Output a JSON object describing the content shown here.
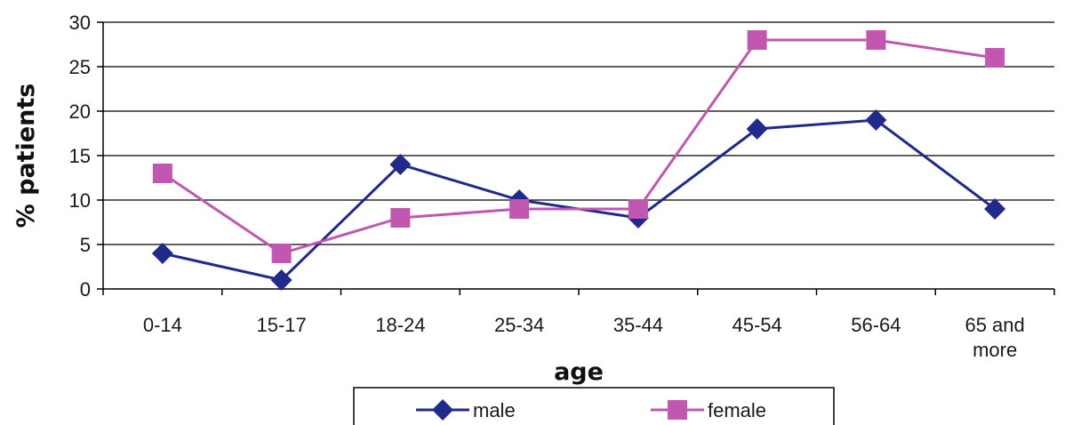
{
  "chart_data": {
    "type": "line",
    "categories": [
      "0-14",
      "15-17",
      "18-24",
      "25-34",
      "35-44",
      "45-54",
      "56-64",
      "65 and more"
    ],
    "series": [
      {
        "name": "male",
        "values": [
          4,
          1,
          14,
          10,
          8,
          18,
          19,
          9
        ],
        "color": "#1f2a8a",
        "marker": "diamond"
      },
      {
        "name": "female",
        "values": [
          13,
          4,
          8,
          9,
          9,
          28,
          28,
          26
        ],
        "color": "#c157b0",
        "marker": "square"
      }
    ],
    "title": "",
    "xlabel": "age",
    "ylabel": "% patients",
    "ylim": [
      0,
      30
    ],
    "yticks": [
      0,
      5,
      10,
      15,
      20,
      25,
      30
    ],
    "grid": true,
    "legend_position": "bottom"
  }
}
